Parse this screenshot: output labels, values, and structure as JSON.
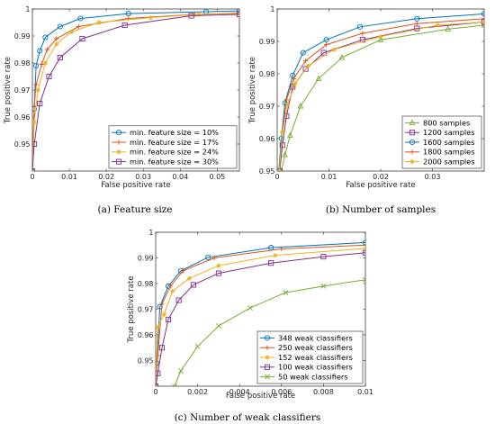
{
  "chart_data": [
    {
      "type": "line",
      "caption": "(a) Feature size",
      "xlabel": "False positive rate",
      "ylabel": "True positive rate",
      "xlim": [
        0,
        0.056
      ],
      "ylim": [
        0.94,
        1.0
      ],
      "xticks": [
        0,
        0.01,
        0.02,
        0.03,
        0.04,
        0.05
      ],
      "yticks": [
        0.95,
        0.96,
        0.97,
        0.98,
        0.99,
        1
      ],
      "xtick_labels": [
        "0",
        "0.01",
        "0.02",
        "0.03",
        "0.04",
        "0.05"
      ],
      "ytick_labels": [
        "0.95",
        "0.96",
        "0.97",
        "0.98",
        "0.99",
        "1"
      ],
      "grid": false,
      "legend_position": "bottom-right",
      "series": [
        {
          "name": "min. feature size = 10%",
          "color": "#0072bd",
          "marker": "circle",
          "x": [
            0,
            0.0005,
            0.001,
            0.002,
            0.0035,
            0.0075,
            0.013,
            0.026,
            0.047,
            0.056
          ],
          "y": [
            0.94,
            0.963,
            0.979,
            0.9845,
            0.9895,
            0.9935,
            0.9965,
            0.9983,
            0.999,
            0.9993
          ]
        },
        {
          "name": "min. feature size = 17%",
          "color": "#d95319",
          "marker": "plus",
          "x": [
            0,
            0.0005,
            0.001,
            0.0025,
            0.004,
            0.0065,
            0.0125,
            0.026,
            0.044,
            0.056
          ],
          "y": [
            0.94,
            0.964,
            0.972,
            0.9795,
            0.985,
            0.989,
            0.9935,
            0.9965,
            0.998,
            0.9985
          ]
        },
        {
          "name": "min. feature size = 24%",
          "color": "#edb120",
          "marker": "asterisk",
          "x": [
            0,
            0.0005,
            0.0015,
            0.0035,
            0.0065,
            0.0105,
            0.018,
            0.032,
            0.045,
            0.056
          ],
          "y": [
            0.94,
            0.958,
            0.97,
            0.98,
            0.987,
            0.9915,
            0.995,
            0.9968,
            0.998,
            0.9983
          ]
        },
        {
          "name": "min. feature size = 30%",
          "color": "#7e2f8e",
          "marker": "square",
          "x": [
            0,
            0.0005,
            0.002,
            0.0045,
            0.0075,
            0.0135,
            0.025,
            0.043,
            0.056
          ],
          "y": [
            0.94,
            0.95,
            0.965,
            0.975,
            0.982,
            0.989,
            0.994,
            0.9975,
            0.998
          ]
        }
      ]
    },
    {
      "type": "line",
      "caption": "(b) Number of samples",
      "xlabel": "False positive rate",
      "ylabel": "True positive rate",
      "xlim": [
        0,
        0.04
      ],
      "ylim": [
        0.95,
        1.0
      ],
      "xticks": [
        0,
        0.01,
        0.02,
        0.03
      ],
      "yticks": [
        0.95,
        0.96,
        0.97,
        0.98,
        0.99,
        1
      ],
      "xtick_labels": [
        "0",
        "0.01",
        "0.02",
        "0.03"
      ],
      "ytick_labels": [
        "0.95",
        "0.96",
        "0.97",
        "0.98",
        "0.99",
        "1"
      ],
      "grid": false,
      "legend_position": "bottom-right",
      "series": [
        {
          "name": "800 samples",
          "color": "#77ac30",
          "marker": "triangle",
          "x": [
            0.0008,
            0.0015,
            0.0025,
            0.0045,
            0.008,
            0.0125,
            0.02,
            0.033,
            0.04
          ],
          "y": [
            0.95,
            0.955,
            0.961,
            0.97,
            0.9785,
            0.985,
            0.9905,
            0.9938,
            0.995
          ]
        },
        {
          "name": "1200 samples",
          "color": "#7e2f8e",
          "marker": "square",
          "x": [
            0.0005,
            0.001,
            0.0018,
            0.003,
            0.0055,
            0.009,
            0.0165,
            0.027,
            0.04
          ],
          "y": [
            0.95,
            0.958,
            0.967,
            0.976,
            0.9815,
            0.9865,
            0.9905,
            0.994,
            0.996
          ]
        },
        {
          "name": "1600 samples",
          "color": "#0072bd",
          "marker": "circle",
          "x": [
            0.0003,
            0.0008,
            0.0015,
            0.003,
            0.005,
            0.0095,
            0.016,
            0.027,
            0.04
          ],
          "y": [
            0.95,
            0.96,
            0.971,
            0.9795,
            0.9865,
            0.9905,
            0.9945,
            0.997,
            0.9985
          ]
        },
        {
          "name": "1800 samples",
          "color": "#d95319",
          "marker": "plus",
          "x": [
            0.0004,
            0.001,
            0.0018,
            0.0032,
            0.0055,
            0.0095,
            0.0165,
            0.027,
            0.04
          ],
          "y": [
            0.95,
            0.962,
            0.972,
            0.9785,
            0.984,
            0.989,
            0.9925,
            0.9955,
            0.997
          ]
        },
        {
          "name": "2000 samples",
          "color": "#edb120",
          "marker": "asterisk",
          "x": [
            0.0004,
            0.001,
            0.002,
            0.0035,
            0.006,
            0.011,
            0.02,
            0.031,
            0.04
          ],
          "y": [
            0.95,
            0.962,
            0.9705,
            0.977,
            0.9825,
            0.9875,
            0.9915,
            0.995,
            0.996
          ]
        }
      ]
    },
    {
      "type": "line",
      "caption": "(c) Number of weak classifiers",
      "xlabel": "False positive rate",
      "ylabel": "True positive rate",
      "xlim": [
        0,
        0.01
      ],
      "ylim": [
        0.94,
        1.0
      ],
      "xticks": [
        0,
        0.002,
        0.004,
        0.006,
        0.008,
        0.01
      ],
      "yticks": [
        0.95,
        0.96,
        0.97,
        0.98,
        0.99,
        1
      ],
      "xtick_labels": [
        "0",
        "0.002",
        "0.004",
        "0.006",
        "0.008",
        "0.01"
      ],
      "ytick_labels": [
        "0.95",
        "0.96",
        "0.97",
        "0.98",
        "0.99",
        "1"
      ],
      "grid": false,
      "legend_position": "bottom-right",
      "series": [
        {
          "name": "348 weak classifiers",
          "color": "#0072bd",
          "marker": "circle",
          "x": [
            0,
            5e-05,
            0.0002,
            0.0006,
            0.0012,
            0.0025,
            0.0055,
            0.01
          ],
          "y": [
            0.94,
            0.949,
            0.971,
            0.979,
            0.985,
            0.9902,
            0.994,
            0.996
          ]
        },
        {
          "name": "250 weak classifiers",
          "color": "#d95319",
          "marker": "plus",
          "x": [
            0,
            0.0001,
            0.0003,
            0.0007,
            0.0013,
            0.0028,
            0.006,
            0.01
          ],
          "y": [
            0.94,
            0.952,
            0.972,
            0.979,
            0.985,
            0.99,
            0.9935,
            0.995
          ]
        },
        {
          "name": "152 weak classifiers",
          "color": "#edb120",
          "marker": "asterisk",
          "x": [
            0,
            0.0001,
            0.0004,
            0.0008,
            0.0016,
            0.003,
            0.0057,
            0.01
          ],
          "y": [
            0.94,
            0.963,
            0.968,
            0.977,
            0.982,
            0.987,
            0.991,
            0.9937
          ]
        },
        {
          "name": "100 weak classifiers",
          "color": "#7e2f8e",
          "marker": "square",
          "x": [
            0,
            0.0001,
            0.0003,
            0.0006,
            0.0011,
            0.0018,
            0.003,
            0.0055,
            0.008,
            0.01
          ],
          "y": [
            0.94,
            0.945,
            0.955,
            0.966,
            0.9735,
            0.9795,
            0.984,
            0.988,
            0.9905,
            0.992
          ]
        },
        {
          "name": "50 weak classifiers",
          "color": "#77ac30",
          "marker": "cross",
          "x": [
            0.0009,
            0.0012,
            0.002,
            0.003,
            0.0045,
            0.0062,
            0.008,
            0.01
          ],
          "y": [
            0.94,
            0.946,
            0.9555,
            0.9635,
            0.9705,
            0.9765,
            0.979,
            0.9815
          ]
        }
      ]
    }
  ]
}
